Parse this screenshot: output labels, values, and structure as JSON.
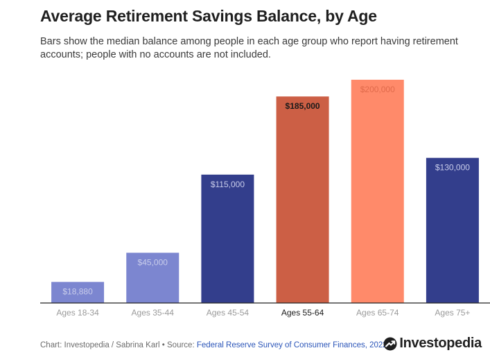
{
  "header": {
    "title": "Average Retirement Savings Balance, by Age",
    "subtitle": "Bars show the median balance among people in each age group who report having retirement accounts; people with no accounts are not included."
  },
  "footer": {
    "credit": "Chart: Investopedia / Sabrina Karl • Source: ",
    "source_link": "Federal Reserve Survey of Consumer Finances, 2022.",
    "logo_text": "Investopedia",
    "logo_icon": "investopedia-mark-icon"
  },
  "chart_data": {
    "type": "bar",
    "title": "Average Retirement Savings Balance, by Age",
    "xlabel": "",
    "ylabel": "",
    "ylim": [
      0,
      200000
    ],
    "grid": false,
    "categories": [
      "Ages 18-34",
      "Ages 35-44",
      "Ages 45-54",
      "Ages 55-64",
      "Ages 65-74",
      "Ages 75+"
    ],
    "values": [
      18880,
      45000,
      115000,
      185000,
      200000,
      130000
    ],
    "data_labels": [
      "$18,880",
      "$45,000",
      "$115,000",
      "$185,000",
      "$200,000",
      "$130,000"
    ],
    "colors": [
      "#7c86d0",
      "#7c86d0",
      "#333e8c",
      "#cc5f45",
      "#ff8a6a",
      "#333e8c"
    ],
    "label_colors": [
      "#c9cdeb",
      "#c9cdeb",
      "#c9cdeb",
      "#1a1a1a",
      "#e06a4b",
      "#c9cdeb"
    ],
    "tick_colors": [
      "#9a9a9a",
      "#9a9a9a",
      "#9a9a9a",
      "#1a1a1a",
      "#9a9a9a",
      "#9a9a9a"
    ],
    "axis_color": "#222222"
  }
}
